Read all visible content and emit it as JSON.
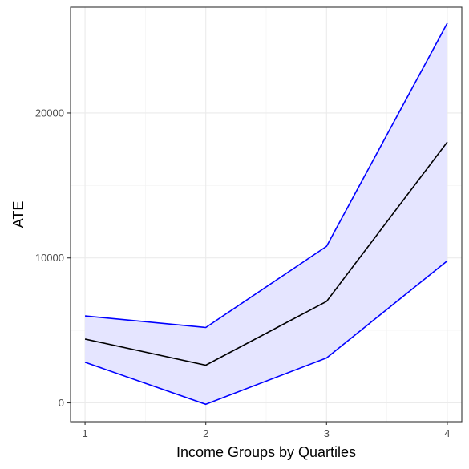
{
  "chart_data": {
    "type": "line",
    "xlabel": "Income Groups by Quartiles",
    "ylabel": "ATE",
    "x": [
      1,
      2,
      3,
      4
    ],
    "x_ticks": [
      "1",
      "2",
      "3",
      "4"
    ],
    "y_ticks": [
      "0",
      "10000",
      "20000"
    ],
    "xlim": [
      0.88,
      4.12
    ],
    "ylim": [
      -1300,
      27300
    ],
    "grid": true,
    "legend": "none",
    "series": [
      {
        "role": "estimate",
        "values": [
          4400,
          2600,
          7000,
          18000
        ],
        "color": "#000000"
      },
      {
        "role": "upper-bound",
        "values": [
          6000,
          5200,
          10800,
          26200
        ],
        "color": "#0000ff"
      },
      {
        "role": "lower-bound",
        "values": [
          2800,
          -100,
          3100,
          9800
        ],
        "color": "#0000ff"
      }
    ],
    "band_fill": "#e5e5ff"
  }
}
